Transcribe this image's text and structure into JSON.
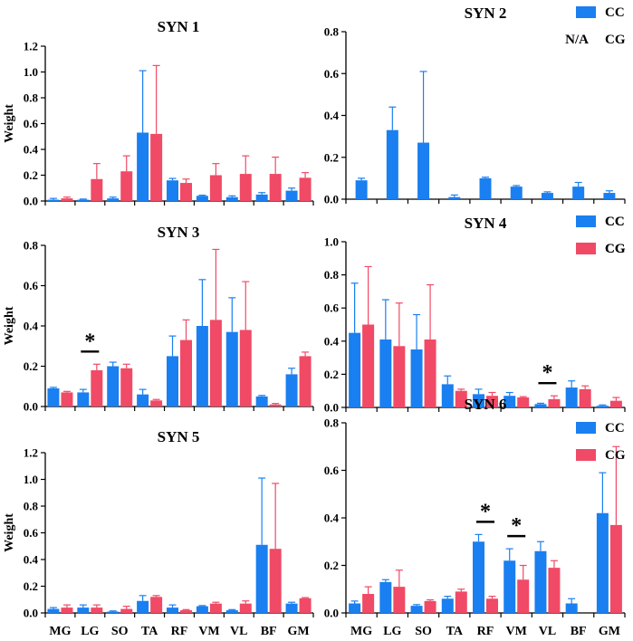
{
  "colors": {
    "cc": "#1a7ff0",
    "cg": "#f04a66"
  },
  "chart_data": [
    {
      "type": "bar",
      "title": "SYN 1",
      "ylabel": "Weight",
      "ylim": [
        0,
        1.2
      ],
      "yticks": [
        "0.0",
        "0.2",
        "0.4",
        "0.6",
        "0.8",
        "1.0",
        "1.2"
      ],
      "categories": [
        "MG",
        "LG",
        "SO",
        "TA",
        "RF",
        "VM",
        "VL",
        "BF",
        "GM"
      ],
      "show_xticks": false,
      "series": [
        {
          "name": "CC",
          "values": [
            0.01,
            0.01,
            0.02,
            0.53,
            0.16,
            0.04,
            0.03,
            0.05,
            0.08
          ],
          "errors": [
            0.01,
            0.005,
            0.01,
            0.48,
            0.015,
            0.005,
            0.01,
            0.015,
            0.02
          ]
        },
        {
          "name": "CG",
          "values": [
            0.02,
            0.17,
            0.23,
            0.52,
            0.14,
            0.2,
            0.21,
            0.21,
            0.18
          ],
          "errors": [
            0.01,
            0.12,
            0.12,
            0.53,
            0.03,
            0.09,
            0.14,
            0.13,
            0.04
          ]
        }
      ],
      "legend": [],
      "legend_na": "",
      "significance": []
    },
    {
      "type": "bar",
      "title": "SYN 2",
      "ylabel": "",
      "ylim": [
        0,
        0.8
      ],
      "yticks": [
        "0.0",
        "0.2",
        "0.4",
        "0.6",
        "0.8"
      ],
      "categories": [
        "MG",
        "LG",
        "SO",
        "TA",
        "RF",
        "VM",
        "VL",
        "BF",
        "GM"
      ],
      "show_xticks": false,
      "series": [
        {
          "name": "CC",
          "values": [
            0.09,
            0.33,
            0.27,
            0.01,
            0.1,
            0.06,
            0.03,
            0.06,
            0.03
          ],
          "errors": [
            0.01,
            0.11,
            0.34,
            0.01,
            0.005,
            0.005,
            0.005,
            0.02,
            0.01
          ]
        }
      ],
      "legend": [
        "CC"
      ],
      "legend_na": "N/A",
      "legend_na_series": "CG",
      "significance": []
    },
    {
      "type": "bar",
      "title": "SYN 3",
      "ylabel": "Weight",
      "ylim": [
        0,
        0.8
      ],
      "yticks": [
        "0.0",
        "0.2",
        "0.4",
        "0.6",
        "0.8"
      ],
      "categories": [
        "MG",
        "LG",
        "SO",
        "TA",
        "RF",
        "VM",
        "VL",
        "BF",
        "GM"
      ],
      "show_xticks": false,
      "series": [
        {
          "name": "CC",
          "values": [
            0.09,
            0.07,
            0.2,
            0.06,
            0.25,
            0.4,
            0.37,
            0.05,
            0.16
          ],
          "errors": [
            0.005,
            0.015,
            0.02,
            0.025,
            0.1,
            0.23,
            0.17,
            0.005,
            0.03
          ]
        },
        {
          "name": "CG",
          "values": [
            0.07,
            0.18,
            0.19,
            0.03,
            0.33,
            0.43,
            0.38,
            0.01,
            0.25
          ],
          "errors": [
            0.005,
            0.03,
            0.02,
            0.005,
            0.1,
            0.35,
            0.24,
            0.005,
            0.02
          ]
        }
      ],
      "legend": [
        "CC",
        "CG"
      ],
      "legend_na": "",
      "significance": [
        {
          "category": "LG",
          "label": "*"
        }
      ]
    },
    {
      "type": "bar",
      "title": "SYN 4",
      "ylabel": "",
      "ylim": [
        0,
        1.0
      ],
      "yticks": [
        "0.0",
        "0.2",
        "0.4",
        "0.6",
        "0.8",
        "1.0"
      ],
      "categories": [
        "MG",
        "LG",
        "SO",
        "TA",
        "RF",
        "VM",
        "VL",
        "BF",
        "GM"
      ],
      "show_xticks": false,
      "series": [
        {
          "name": "CC",
          "values": [
            0.45,
            0.41,
            0.35,
            0.14,
            0.08,
            0.07,
            0.02,
            0.12,
            0.01
          ],
          "errors": [
            0.3,
            0.24,
            0.21,
            0.05,
            0.03,
            0.02,
            0.005,
            0.04,
            0.005
          ]
        },
        {
          "name": "CG",
          "values": [
            0.5,
            0.37,
            0.41,
            0.1,
            0.07,
            0.06,
            0.05,
            0.11,
            0.04
          ],
          "errors": [
            0.35,
            0.26,
            0.33,
            0.01,
            0.02,
            0.005,
            0.02,
            0.02,
            0.02
          ]
        }
      ],
      "legend": [
        "CC",
        "CG"
      ],
      "legend_na": "",
      "significance": [
        {
          "category": "VL",
          "label": "*"
        }
      ]
    },
    {
      "type": "bar",
      "title": "SYN 5",
      "ylabel": "Weight",
      "ylim": [
        0,
        1.2
      ],
      "yticks": [
        "0.0",
        "0.2",
        "0.4",
        "0.6",
        "0.8",
        "1.0",
        "1.2"
      ],
      "categories": [
        "MG",
        "LG",
        "SO",
        "TA",
        "RF",
        "VM",
        "VL",
        "BF",
        "GM"
      ],
      "show_xticks": true,
      "series": [
        {
          "name": "CC",
          "values": [
            0.03,
            0.04,
            0.01,
            0.09,
            0.04,
            0.05,
            0.02,
            0.51,
            0.07
          ],
          "errors": [
            0.01,
            0.02,
            0.005,
            0.04,
            0.02,
            0.005,
            0.005,
            0.5,
            0.01
          ]
        },
        {
          "name": "CG",
          "values": [
            0.04,
            0.04,
            0.03,
            0.12,
            0.02,
            0.07,
            0.07,
            0.48,
            0.11
          ],
          "errors": [
            0.02,
            0.02,
            0.02,
            0.01,
            0.005,
            0.01,
            0.02,
            0.49,
            0.005
          ]
        }
      ],
      "legend": [],
      "legend_na": "",
      "significance": []
    },
    {
      "type": "bar",
      "title": "SYN 6",
      "ylabel": "",
      "ylim": [
        0,
        0.8
      ],
      "yticks": [
        "0.0",
        "0.2",
        "0.4",
        "0.6",
        "0.8"
      ],
      "categories": [
        "MG",
        "LG",
        "SO",
        "TA",
        "RF",
        "VM",
        "VL",
        "BF",
        "GM"
      ],
      "show_xticks": true,
      "series": [
        {
          "name": "CC",
          "values": [
            0.04,
            0.13,
            0.03,
            0.06,
            0.3,
            0.22,
            0.26,
            0.04,
            0.42
          ],
          "errors": [
            0.01,
            0.01,
            0.005,
            0.01,
            0.03,
            0.05,
            0.04,
            0.02,
            0.17
          ]
        },
        {
          "name": "CG",
          "values": [
            0.08,
            0.11,
            0.05,
            0.09,
            0.06,
            0.14,
            0.19,
            0.0,
            0.37
          ],
          "errors": [
            0.03,
            0.07,
            0.005,
            0.01,
            0.01,
            0.06,
            0.03,
            0.0,
            0.33
          ]
        }
      ],
      "legend": [
        "CC",
        "CG"
      ],
      "legend_na": "",
      "significance": [
        {
          "category": "RF",
          "label": "*"
        },
        {
          "category": "VM",
          "label": "*"
        }
      ]
    }
  ]
}
